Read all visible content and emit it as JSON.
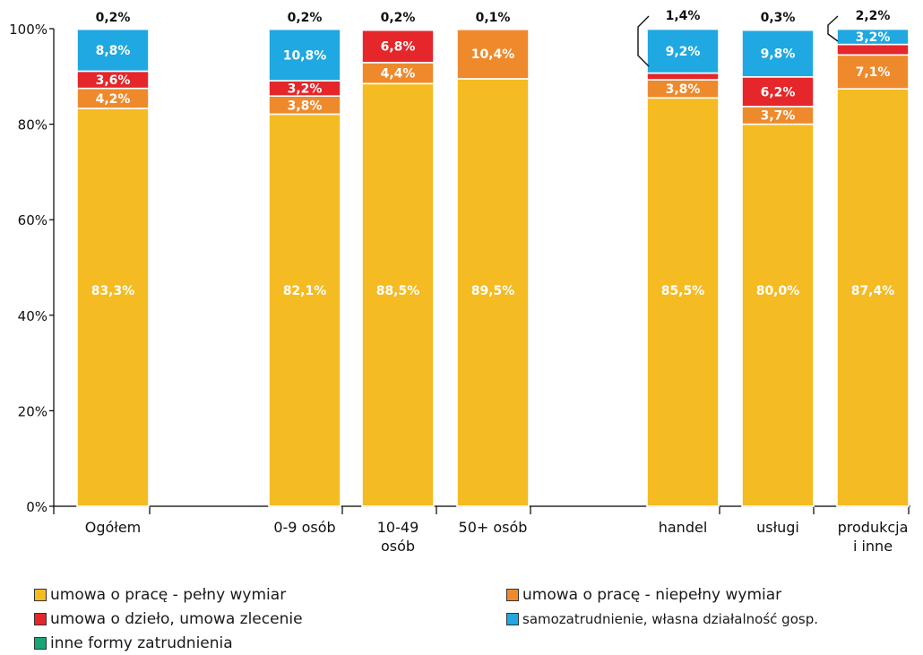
{
  "chart_data": {
    "type": "bar",
    "stacked": true,
    "ylim": [
      0,
      100
    ],
    "y_ticks": [
      "0%",
      "20%",
      "40%",
      "60%",
      "80%",
      "100%"
    ],
    "y_tick_values": [
      0,
      20,
      40,
      60,
      80,
      100
    ],
    "grid": false,
    "legend_position": "bottom",
    "categories": [
      "Ogółem",
      "0-9 osób",
      "10-49 osób",
      "50+ osób",
      "handel",
      "usługi",
      "produkcja i inne"
    ],
    "category_labels": [
      [
        "Ogółem"
      ],
      [
        "0-9 osób"
      ],
      [
        "10-49",
        "osób"
      ],
      [
        "50+ osób"
      ],
      [
        "handel"
      ],
      [
        "usługi"
      ],
      [
        "produkcja",
        "i inne"
      ]
    ],
    "series": [
      {
        "name": "umowa o pracę - pełny wymiar",
        "color": "#f4bb22",
        "values": [
          83.3,
          82.1,
          88.5,
          89.5,
          85.5,
          80.0,
          87.4
        ],
        "labels": [
          "83,3%",
          "82,1%",
          "88,5%",
          "89,5%",
          "85,5%",
          "80,0%",
          "87,4%"
        ]
      },
      {
        "name": "umowa o pracę - niepełny wymiar",
        "color": "#ee8a2c",
        "values": [
          4.2,
          3.8,
          4.4,
          10.4,
          3.8,
          3.7,
          7.1
        ],
        "labels": [
          "4,2%",
          "3,8%",
          "4,4%",
          "10,4%",
          "3,8%",
          "3,7%",
          "7,1%"
        ]
      },
      {
        "name": "umowa o dzieło, umowa zlecenie",
        "color": "#e5262a",
        "values": [
          3.6,
          3.2,
          6.8,
          0.0,
          1.4,
          6.2,
          2.2
        ],
        "labels": [
          "3,6%",
          "3,2%",
          "6,8%",
          "",
          "1,4%",
          "6,2%",
          "2,2%"
        ]
      },
      {
        "name": "samozatrudnienie, własna działalność gosp.",
        "color": "#1fa8e1",
        "values": [
          8.8,
          10.8,
          0.0,
          0.0,
          9.2,
          9.8,
          3.2
        ],
        "labels": [
          "8,8%",
          "10,8%",
          "",
          "",
          "9,2%",
          "9,8%",
          "3,2%"
        ]
      },
      {
        "name": "inne formy zatrudnienia",
        "color": "#17a774",
        "values": [
          0.2,
          0.2,
          0.2,
          0.1,
          0.0,
          0.3,
          0.0
        ],
        "labels": [
          "0,2%",
          "0,2%",
          "0,2%",
          "0,1%",
          "",
          "0,3%",
          ""
        ]
      }
    ]
  },
  "legend": {
    "items": [
      {
        "label": "umowa o pracę - pełny wymiar",
        "color": "#f4bb22"
      },
      {
        "label": "umowa o pracę - niepełny wymiar",
        "color": "#ee8a2c"
      },
      {
        "label": "umowa o dzieło, umowa zlecenie",
        "color": "#e5262a"
      },
      {
        "label": "samozatrudnienie, własna działalność gosp.",
        "color": "#1fa8e1"
      },
      {
        "label": "inne formy zatrudnienia",
        "color": "#17a774"
      }
    ]
  }
}
